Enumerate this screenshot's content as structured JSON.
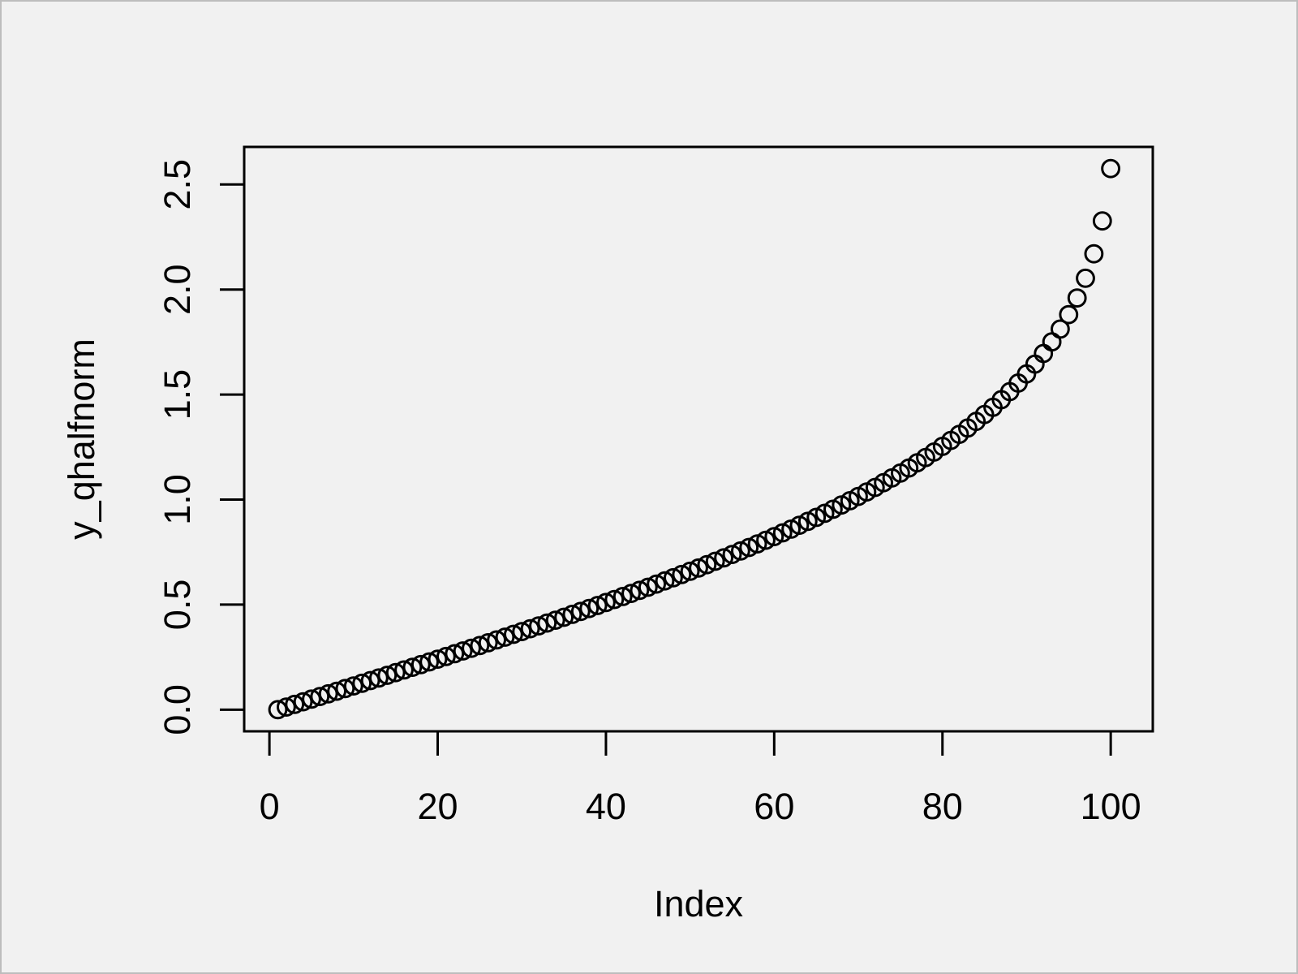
{
  "figure": {
    "background_color": "#f1f1f1",
    "frame_border_color": "#bdbdbd",
    "axis_color": "#000000",
    "point_color": "#000000"
  },
  "chart_data": {
    "type": "scatter",
    "title": "",
    "xlabel": "Index",
    "ylabel": "y_qhalfnorm",
    "marker": "open-circle",
    "grid": false,
    "legend": false,
    "xlim": [
      -3,
      105
    ],
    "ylim": [
      -0.103033,
      2.678862
    ],
    "x_ticks": {
      "values": [
        0,
        20,
        40,
        60,
        80,
        100
      ],
      "labels": [
        "0",
        "20",
        "40",
        "60",
        "80",
        "100"
      ]
    },
    "y_ticks": {
      "values": [
        0.0,
        0.5,
        1.0,
        1.5,
        2.0,
        2.5
      ],
      "labels": [
        "0.0",
        "0.5",
        "1.0",
        "1.5",
        "2.0",
        "2.5"
      ]
    },
    "x": [
      1,
      2,
      3,
      4,
      5,
      6,
      7,
      8,
      9,
      10,
      11,
      12,
      13,
      14,
      15,
      16,
      17,
      18,
      19,
      20,
      21,
      22,
      23,
      24,
      25,
      26,
      27,
      28,
      29,
      30,
      31,
      32,
      33,
      34,
      35,
      36,
      37,
      38,
      39,
      40,
      41,
      42,
      43,
      44,
      45,
      46,
      47,
      48,
      49,
      50,
      51,
      52,
      53,
      54,
      55,
      56,
      57,
      58,
      59,
      60,
      61,
      62,
      63,
      64,
      65,
      66,
      67,
      68,
      69,
      70,
      71,
      72,
      73,
      74,
      75,
      76,
      77,
      78,
      79,
      80,
      81,
      82,
      83,
      84,
      85,
      86,
      87,
      88,
      89,
      90,
      91,
      92,
      93,
      94,
      95,
      96,
      97,
      98,
      99,
      100
    ],
    "y": [
      0.0,
      0.0125,
      0.0251,
      0.0376,
      0.0502,
      0.0627,
      0.0753,
      0.0878,
      0.1004,
      0.113,
      0.1257,
      0.1383,
      0.151,
      0.1637,
      0.1764,
      0.1891,
      0.2019,
      0.2147,
      0.2275,
      0.2404,
      0.2533,
      0.2663,
      0.2793,
      0.2924,
      0.3055,
      0.3186,
      0.3319,
      0.3451,
      0.3585,
      0.3719,
      0.3853,
      0.3989,
      0.4125,
      0.4261,
      0.4399,
      0.4538,
      0.4677,
      0.4817,
      0.4959,
      0.5101,
      0.5244,
      0.5388,
      0.5534,
      0.5681,
      0.5828,
      0.5978,
      0.6128,
      0.628,
      0.6433,
      0.6588,
      0.6745,
      0.6903,
      0.7063,
      0.7225,
      0.7388,
      0.7554,
      0.7722,
      0.7892,
      0.8064,
      0.8239,
      0.8416,
      0.8596,
      0.8779,
      0.8965,
      0.9154,
      0.9346,
      0.9542,
      0.9741,
      0.9945,
      1.0152,
      1.0364,
      1.0581,
      1.0803,
      1.1031,
      1.1264,
      1.1503,
      1.175,
      1.2004,
      1.2265,
      1.2536,
      1.2816,
      1.3106,
      1.3408,
      1.3722,
      1.4051,
      1.4395,
      1.4758,
      1.5141,
      1.5548,
      1.5982,
      1.6449,
      1.6954,
      1.7507,
      1.8119,
      1.8808,
      1.96,
      2.0537,
      2.1701,
      2.3263,
      2.5758
    ]
  }
}
